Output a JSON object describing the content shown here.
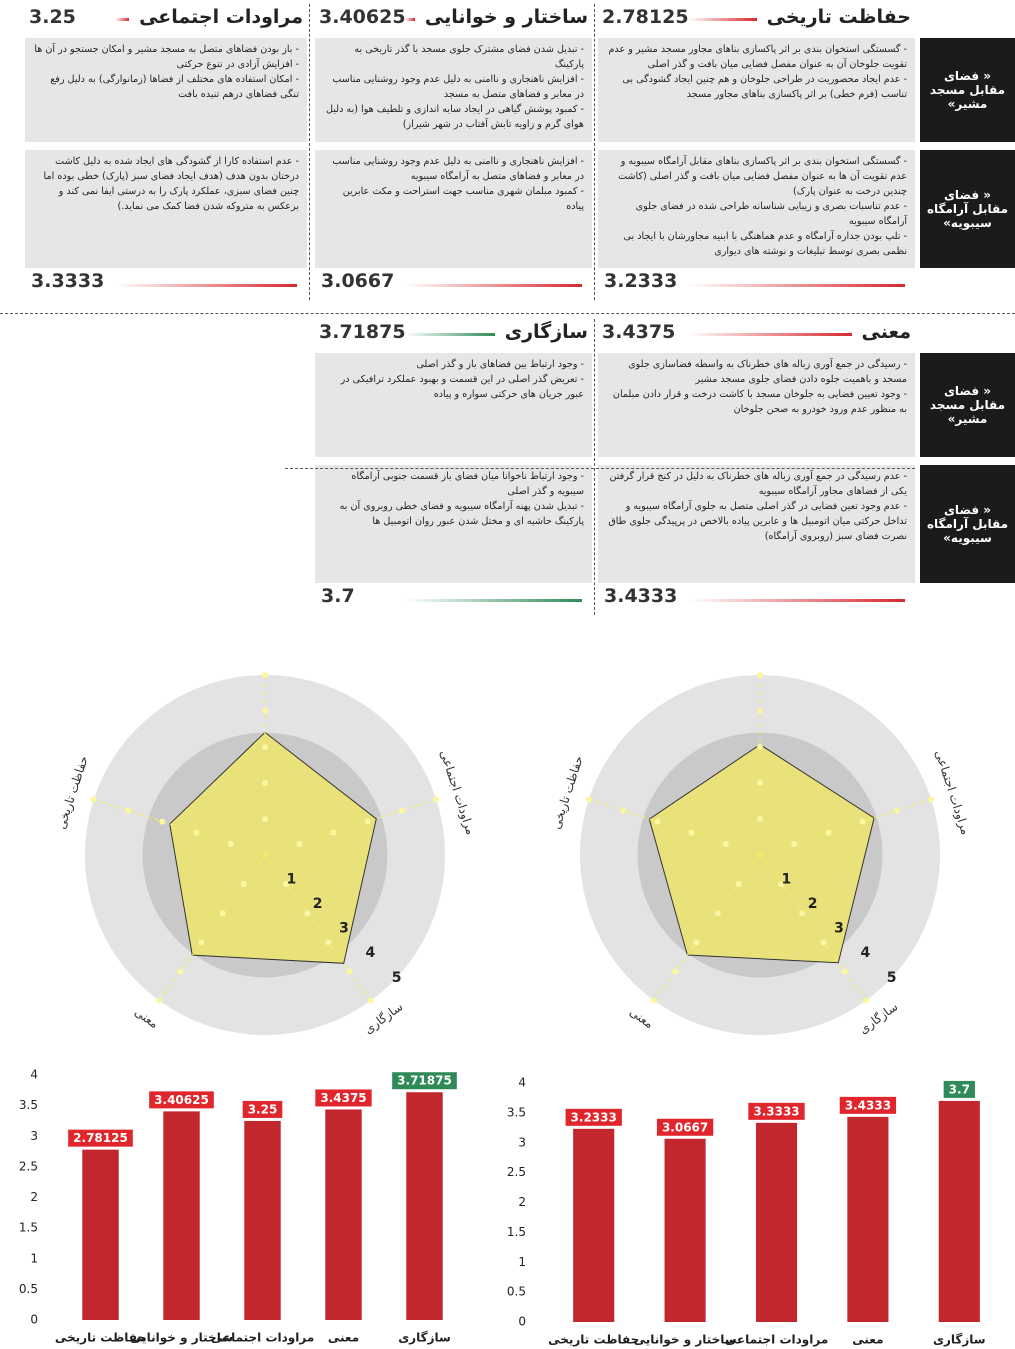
{
  "panels": {
    "sections": [
      {
        "row_labels": [
          "« فضای مقابل مسجد مشیر»",
          "« فضای مقابل آرامگاه سیبویه»"
        ],
        "columns": [
          {
            "title": "حفاظت تاریخی",
            "score": 2.78125,
            "color": "#d7282f",
            "cells": [
              "- گسستگی استخوان بندی بر اثر پاکسازی بناهای مجاور مسجد مشیر و عدم تقویت جلوخان آن به عنوان مفصل فضایی میان بافت و گذر اصلی\n- عدم ایجاد محصوریت در طراحی جلوخان و هم چنین ایجاد گشودگی بی تناسب (فرم خطی) بر اثر پاکسازی بناهای مجاور مسجد",
              "- گسستگی استخوان بندی بر اثر پاکسازی بناهای مقابل آرامگاه سیبویه و عدم تقویت آن ها به عنوان مفصل فضایی میان بافت و گذر اصلی (کاشت چندین درخت به عنوان پارک)\n- عدم تناسبات بصری و زیبایی شناسانه طراحی شده در فضای جلوی آرامگاه سیبویه\n- تلپ بودن جداره آرامگاه و عدم هماهنگی با ابنیه مجاورشان با ایجاد بی نظمی بصری توسط تبلیغات و نوشته های دیواری"
            ],
            "bottom_score": 3.2333
          },
          {
            "title": "ساختار و خوانایی",
            "score": 3.40625,
            "color": "#d7282f",
            "cells": [
              "- تبدیل شدن فضای مشترک جلوی مسجد با گذر تاریخی به پارکینگ\n- افزایش ناهنجاری و ناامنی به دلیل عدم وجود روشنایی مناسب در معابر و فضاهای متصل به مسجد\n- کمبود پوشش گیاهی در ایجاد سایه اندازی و تلطیف هوا (به دلیل هوای گرم و زاویه تابش آفتاب در شهر شیراز)",
              "- افزایش ناهنجاری و ناامنی به دلیل عدم وجود روشنایی مناسب در معابر و فضاهای متصل به آرامگاه سیبویه\n- کمبود مبلمان شهری مناسب جهت استراحت و مکث عابرین پیاده"
            ],
            "bottom_score": 3.0667
          },
          {
            "title": "مراودات اجتماعی",
            "score": 3.25,
            "color": "#d7282f",
            "cells": [
              "- باز بودن فضاهای متصل به مسجد مشیر و امکان جستجو در آن ها\n- افزایش آزادی در تنوع حرکتی\n- امکان استفاده های مختلف از فضاها (زمانوارگی) به دلیل رفع تنگی فضاهای درهم تنیده بافت",
              "- عدم استفاده کارا از گشودگی های ایجاد شده به دلیل کاشت درختان بدون هدف (هدف ایجاد فضای سبز (پارک) خطی بوده اما چنین فضای سبزی، عملکرد پارک را به درستی ایفا نمی کند و برعکس به متروکه شدن فضا کمک می نماید.)"
            ],
            "bottom_score": 3.3333
          }
        ]
      },
      {
        "row_labels": [
          "« فضای مقابل مسجد مشیر»",
          "« فضای مقابل آرامگاه سیبویه»"
        ],
        "columns": [
          {
            "title": "معنی",
            "score": 3.4375,
            "color": "#d7282f",
            "cells": [
              "- رسیدگی در جمع آوری زباله های خطرناک به واسطه فضاسازی جلوی مسجد و باهمیت جلوه دادن فضای جلوی مسجد مشیر\n- وجود تعیین فضایی به جلوخان مسجد با کاشت درخت و قرار دادن مبلمان به منظور عدم ورود خودرو به صحن جلوخان",
              "- عدم رسیدگی در جمع آوری زباله های خطرناک به دلیل در کنج قرار گرفتن یکی از فضاهای مجاور آرامگاه سیبویه\n- عدم وجود تعین فضایی در گذر اصلی متصل به جلوی آرامگاه سیبویه و تداخل حرکتی میان اتومبیل ها و عابرین پیاده بالاخص در پرپیدگی جلوی طاق نصرت فضای سبز (روبروی آرامگاه)"
            ],
            "bottom_score": 3.4333
          },
          {
            "title": "سازگاری",
            "score": 3.71875,
            "color": "#2e8b57",
            "cells": [
              "- وجود ارتباط بین فضاهای باز و گذر اصلی\n- تعریض گذر اصلی در این قسمت و بهبود عملکرد ترافیکی در عبور جریان های حرکتی سواره و پیاده",
              "- وجود ارتباط ناخوانا میان فضای باز قسمت جنوبی آرامگاه سیبویه و گذر اصلی\n- تبدیل شدن پهنه آرامگاه سیبویه و فضای خطی روبروی آن به پارکینگ حاشیه ای و مختل شدن عبور روان اتومبیل ها"
            ],
            "bottom_score": 3.7
          }
        ]
      }
    ]
  },
  "chart_data": [
    {
      "type": "radar",
      "categories": [
        null,
        "مراودات اجتماعی",
        "سازگاری",
        "معنی",
        "حفاظت تاریخی"
      ],
      "values": [
        3.40625,
        3.25,
        3.71875,
        3.4375,
        2.78125
      ],
      "color": "#e9e27a",
      "rlim": [
        0,
        5
      ],
      "rticks": [
        1,
        2,
        3,
        4,
        5
      ]
    },
    {
      "type": "radar",
      "categories": [
        null,
        "مراودات اجتماعی",
        "سازگاری",
        "معنی",
        "حفاظت تاریخی"
      ],
      "values": [
        3.0667,
        3.3333,
        3.7,
        3.4333,
        3.2333
      ],
      "color": "#e9e27a",
      "rlim": [
        0,
        5
      ],
      "rticks": [
        1,
        2,
        3,
        4,
        5
      ]
    },
    {
      "type": "bar",
      "categories": [
        "حفاظت تاریخی",
        "ساختار و خوانایی",
        "مراودات اجتماعی",
        "معنی",
        "سازگاری"
      ],
      "values": [
        2.78125,
        3.40625,
        3.25,
        3.4375,
        3.71875
      ],
      "color": "#c1272d",
      "value_label_colors": [
        "#e0262c",
        "#e0262c",
        "#e0262c",
        "#e0262c",
        "#2e8b57"
      ],
      "ylim": [
        0,
        4
      ],
      "yticks": [
        0,
        0.5,
        1,
        1.5,
        2,
        2.5,
        3,
        3.5,
        4
      ]
    },
    {
      "type": "bar",
      "categories": [
        "حفاظت تاریخی",
        "ساختار و خوانایی",
        "مراودات اجتماعی",
        "معنی",
        "سازگاری"
      ],
      "values": [
        3.2333,
        3.0667,
        3.3333,
        3.4333,
        3.7
      ],
      "color": "#c1272d",
      "value_label_colors": [
        "#e0262c",
        "#e0262c",
        "#e0262c",
        "#e0262c",
        "#2e8b57"
      ],
      "ylim": [
        0,
        4
      ],
      "yticks": [
        0,
        0.5,
        1,
        1.5,
        2,
        2.5,
        3,
        3.5,
        4
      ]
    }
  ]
}
